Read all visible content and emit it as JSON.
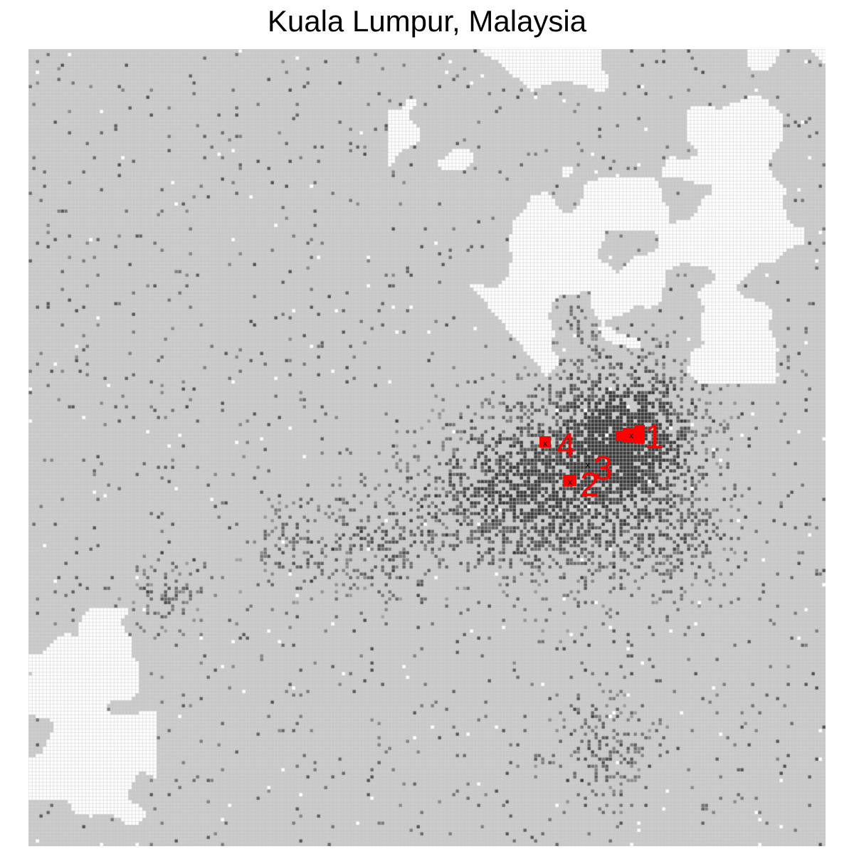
{
  "title": "Kuala Lumpur, Malaysia",
  "colors": {
    "background": "#c8c8c8",
    "grid": "#d4d4d4",
    "no_data": "#ffffff",
    "density_dark": "#3c3c3c",
    "highlight": "#ff0000",
    "center_marker": "#000000"
  },
  "hotspots": [
    {
      "label": "1",
      "marker": "x"
    },
    {
      "label": "2",
      "marker": "x"
    },
    {
      "label": "3",
      "marker": "x"
    },
    {
      "label": "4",
      "marker": "x"
    }
  ]
}
